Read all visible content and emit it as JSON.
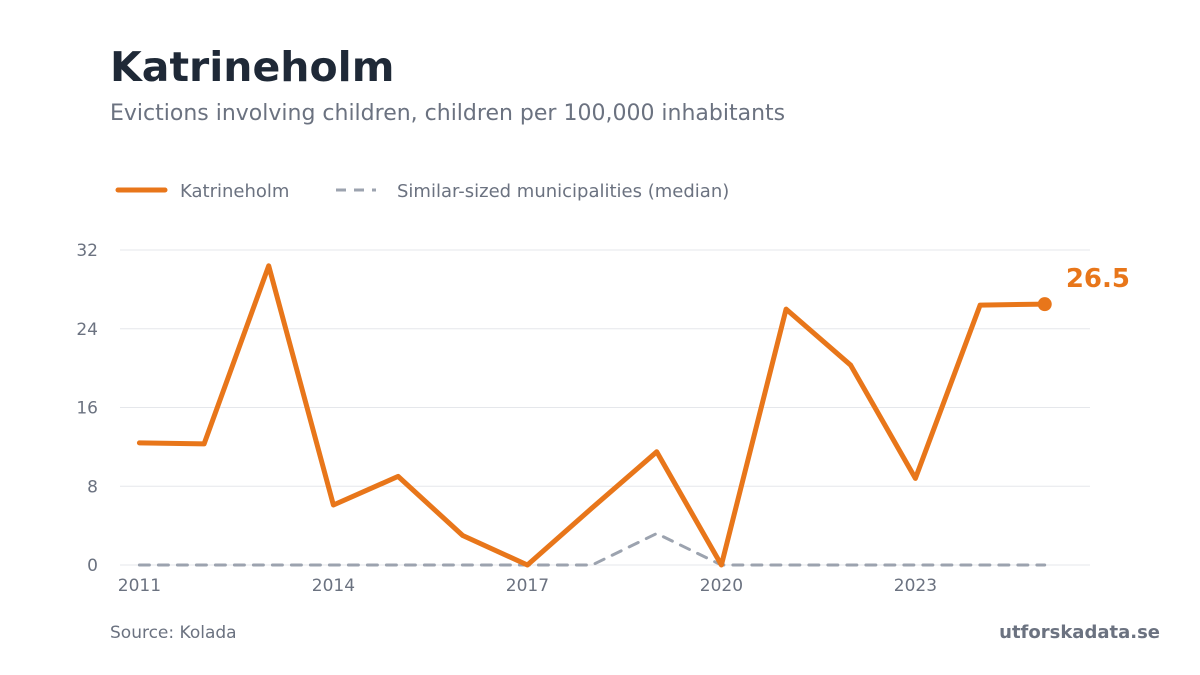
{
  "title": "Katrineholm",
  "subtitle": "Evictions involving children, children per 100,000 inhabitants",
  "footer": {
    "source": "Source: Kolada",
    "brand": "utforskadata.se"
  },
  "colors": {
    "primary": "#e8761a",
    "median": "#9ca3af",
    "grid": "#e5e7eb",
    "title": "#1f2937",
    "muted": "#6b7280"
  },
  "chart_data": {
    "type": "line",
    "x": [
      2011,
      2012,
      2013,
      2014,
      2015,
      2016,
      2017,
      2018,
      2019,
      2020,
      2021,
      2022,
      2023,
      2024,
      2025
    ],
    "x_ticks": [
      "2011",
      "2014",
      "2017",
      "2020",
      "2023"
    ],
    "y_ticks": [
      "0",
      "8",
      "16",
      "24",
      "32"
    ],
    "ylim": [
      0,
      32
    ],
    "xlim": [
      2010.7,
      2025.7
    ],
    "grid": true,
    "legend_position": "top-left",
    "series": [
      {
        "name": "Katrineholm",
        "style": "solid",
        "color": "#e8761a",
        "values": [
          12.4,
          12.3,
          30.4,
          6.1,
          9.0,
          3.0,
          0.0,
          5.8,
          11.5,
          0.0,
          26.0,
          20.3,
          8.8,
          26.4,
          26.5
        ]
      },
      {
        "name": "Similar-sized municipalities (median)",
        "style": "dashed",
        "color": "#9ca3af",
        "values": [
          0,
          0,
          0,
          0,
          0,
          0,
          0,
          0,
          3.2,
          0,
          0,
          0,
          0,
          0,
          0
        ]
      }
    ],
    "end_label": "26.5"
  }
}
